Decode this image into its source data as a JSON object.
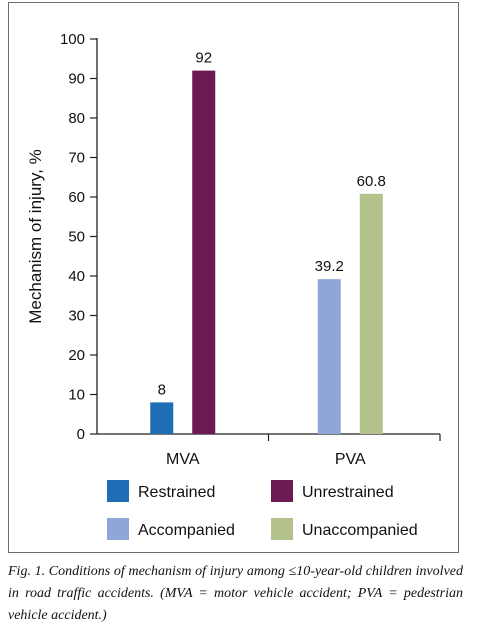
{
  "chart_data": {
    "type": "bar",
    "ylabel": "Mechanism of injury, %",
    "ylim": [
      0,
      100
    ],
    "yticks": [
      0,
      10,
      20,
      30,
      40,
      50,
      60,
      70,
      80,
      90,
      100
    ],
    "groups": [
      {
        "category": "MVA",
        "bars": [
          {
            "series": "Restrained",
            "value": 8,
            "label": "8"
          },
          {
            "series": "Unrestrained",
            "value": 92,
            "label": "92"
          }
        ]
      },
      {
        "category": "PVA",
        "bars": [
          {
            "series": "Accompanied",
            "value": 39.2,
            "label": "39.2"
          },
          {
            "series": "Unaccompanied",
            "value": 60.8,
            "label": "60.8"
          }
        ]
      }
    ],
    "series": [
      {
        "name": "Restrained",
        "color": "#1f6db5"
      },
      {
        "name": "Unrestrained",
        "color": "#6b1a52"
      },
      {
        "name": "Accompanied",
        "color": "#8ea7d8"
      },
      {
        "name": "Unaccompanied",
        "color": "#b3c18c"
      }
    ],
    "legend": "bottom",
    "grid": false
  },
  "caption": "Fig. 1. Conditions of mechanism of injury among ≤10-year-old children involved in road traffic accidents. (MVA = motor vehicle accident; PVA = pedestrian vehicle accident.)"
}
